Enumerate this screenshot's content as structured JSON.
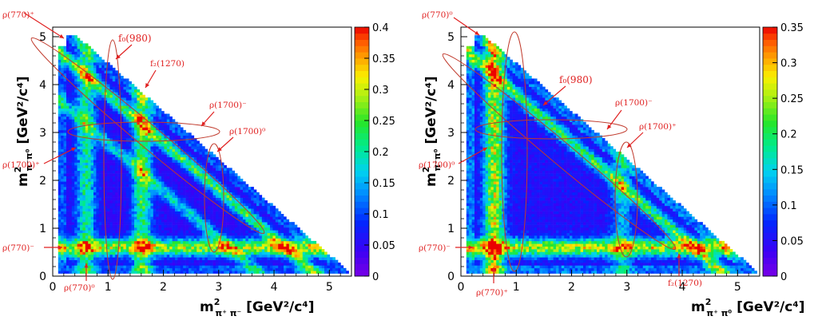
{
  "chart_data": [
    {
      "type": "heatmap",
      "title": "",
      "xlabel": "m²π+π- [GeV²/c⁴]",
      "ylabel": "m²π-π0 [GeV²/c⁴]",
      "xlabel_parts": {
        "m": "m",
        "sup": "2",
        "sub": "π⁺ π⁻",
        "unit": " [GeV²/c⁴]"
      },
      "ylabel_parts": {
        "m": "m",
        "sup": "2",
        "sub": "π⁻π⁰",
        "unit": " [GeV²/c⁴]"
      },
      "xlim": [
        0,
        5.4
      ],
      "ylim": [
        0,
        5.2
      ],
      "xticks": [
        "0",
        "1",
        "2",
        "3",
        "4",
        "5"
      ],
      "yticks": [
        "0",
        "1",
        "2",
        "3",
        "4",
        "5"
      ],
      "colorbar": {
        "min": 0,
        "max": 0.4,
        "ticks": [
          "0",
          "0.05",
          "0.1",
          "0.15",
          "0.2",
          "0.25",
          "0.3",
          "0.35",
          "0.4"
        ]
      },
      "bands": [
        {
          "axis": "y",
          "at": 0.6,
          "intensity": 0.22
        },
        {
          "axis": "x",
          "at": 0.6,
          "intensity": 0.14
        },
        {
          "axis": "diag",
          "at": 0.6,
          "intensity": 0.18
        },
        {
          "axis": "x",
          "at": 1.62,
          "intensity": 0.17
        },
        {
          "axis": "diag",
          "at": 1.62,
          "intensity": 0.12
        }
      ],
      "annotations": [
        {
          "text": "ρ(770)⁺"
        },
        {
          "text": "f₀(980)"
        },
        {
          "text": "f₂(1270)"
        },
        {
          "text": "ρ(1700)⁻"
        },
        {
          "text": "ρ(1700)⁰"
        },
        {
          "text": "ρ(1700)⁺"
        },
        {
          "text": "ρ(770)⁻"
        },
        {
          "text": "ρ(770)⁰"
        }
      ]
    },
    {
      "type": "heatmap",
      "title": "",
      "xlabel": "m²π+π0 [GeV²/c⁴]",
      "ylabel": "m²π-π0 [GeV²/c⁴]",
      "xlabel_parts": {
        "m": "m",
        "sup": "2",
        "sub": "π⁺ π⁰",
        "unit": " [GeV²/c⁴]"
      },
      "ylabel_parts": {
        "m": "m",
        "sup": "2",
        "sub": "π⁻π⁰",
        "unit": " [GeV²/c⁴]"
      },
      "xlim": [
        0,
        5.4
      ],
      "ylim": [
        0,
        5.2
      ],
      "xticks": [
        "0",
        "1",
        "2",
        "3",
        "4",
        "5"
      ],
      "yticks": [
        "0",
        "1",
        "2",
        "3",
        "4",
        "5"
      ],
      "colorbar": {
        "min": 0,
        "max": 0.35,
        "ticks": [
          "0",
          "0.05",
          "0.1",
          "0.15",
          "0.2",
          "0.25",
          "0.3",
          "0.35"
        ]
      },
      "bands": [
        {
          "axis": "y",
          "at": 0.6,
          "intensity": 0.2
        },
        {
          "axis": "x",
          "at": 0.6,
          "intensity": 0.2
        },
        {
          "axis": "diag",
          "at": 0.6,
          "intensity": 0.15
        },
        {
          "axis": "x",
          "at": 2.9,
          "intensity": 0.08
        }
      ],
      "annotations": [
        {
          "text": "ρ(770)⁰"
        },
        {
          "text": "f₀(980)"
        },
        {
          "text": "ρ(1700)⁻"
        },
        {
          "text": "ρ(1700)⁺"
        },
        {
          "text": "ρ(1700)⁰"
        },
        {
          "text": "ρ(770)⁻"
        },
        {
          "text": "ρ(770)⁺"
        },
        {
          "text": "f₂(1270)"
        }
      ]
    }
  ]
}
